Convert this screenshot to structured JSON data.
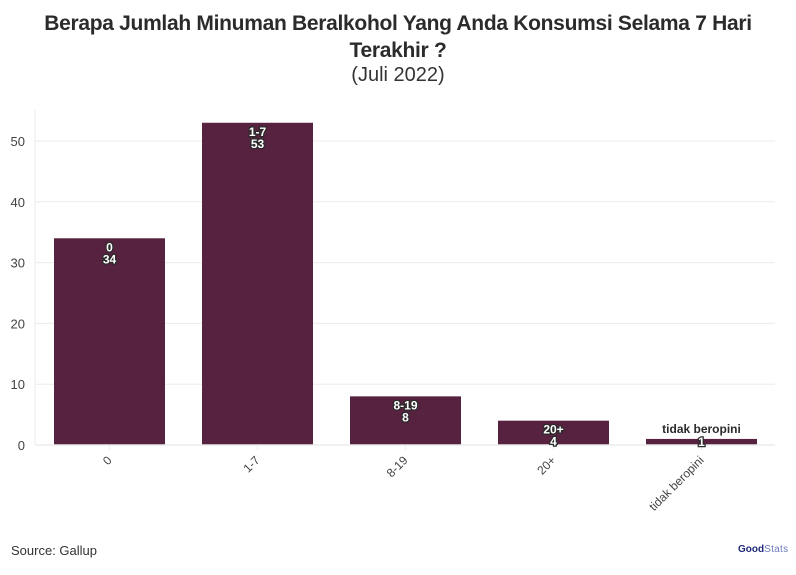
{
  "header": {
    "title_line1": "Berapa Jumlah Minuman Beralkohol Yang Anda Konsumsi Selama 7 Hari",
    "title_line2": "Terakhir ?",
    "subtitle": "(Juli 2022)"
  },
  "footer": {
    "source": "Source: Gallup",
    "logo_bold": "Good",
    "logo_light": "Stats"
  },
  "colors": {
    "bar": "#56223f",
    "grid": "#ebebeb",
    "axis_text": "#444444",
    "label_text": "#ffffff",
    "label_outline": "#2b2b2b"
  },
  "chart_data": {
    "type": "bar",
    "title": "Berapa Jumlah Minuman Beralkohol Yang Anda Konsumsi Selama 7 Hari Terakhir ?",
    "subtitle": "(Juli 2022)",
    "categories": [
      "0",
      "1-7",
      "8-19",
      "20+",
      "tidak beropini"
    ],
    "values": [
      34,
      53,
      8,
      4,
      1
    ],
    "data_labels": [
      {
        "category": "0",
        "value": "34"
      },
      {
        "category": "1-7",
        "value": "53"
      },
      {
        "category": "8-19",
        "value": "8"
      },
      {
        "category": "20+",
        "value": "4"
      },
      {
        "category": "tidak beropini",
        "value": "1"
      }
    ],
    "xlabel": "",
    "ylabel": "",
    "ylim": [
      0,
      55
    ],
    "yticks": [
      0,
      10,
      20,
      30,
      40,
      50
    ],
    "x_tick_rotation": -45,
    "grid": true,
    "legend": "none",
    "source": "Source: Gallup"
  }
}
